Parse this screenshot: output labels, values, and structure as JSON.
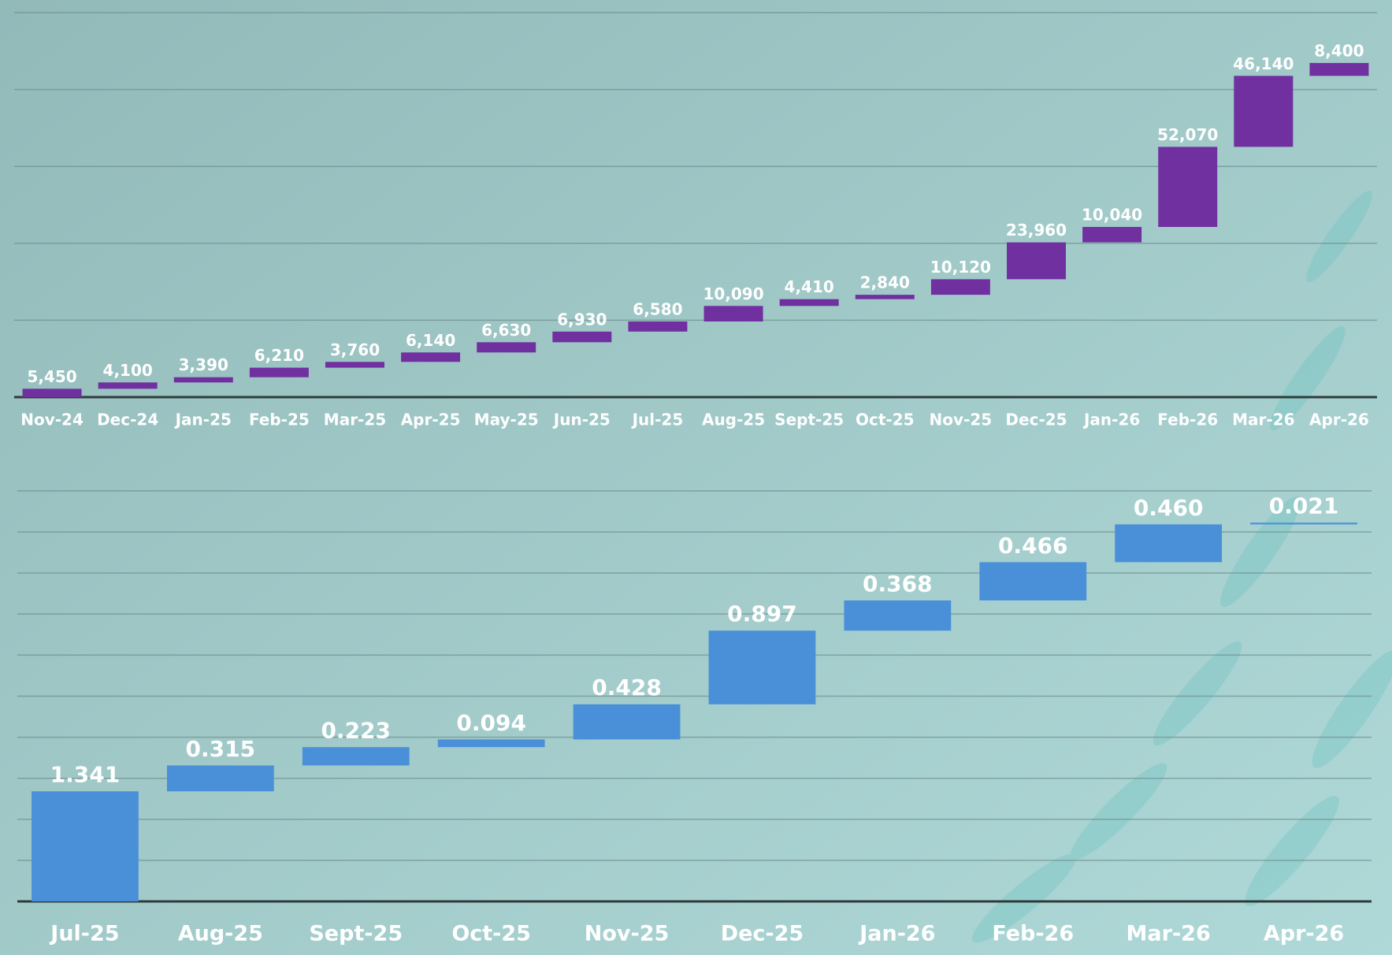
{
  "chart_data": [
    {
      "type": "waterfall",
      "color": "#7030a0",
      "grid": true,
      "categories": [
        "Nov-24",
        "Dec-24",
        "Jan-25",
        "Feb-25",
        "Mar-25",
        "Apr-25",
        "May-25",
        "Jun-25",
        "Jul-25",
        "Aug-25",
        "Sept-25",
        "Oct-25",
        "Nov-25",
        "Dec-25",
        "Jan-26",
        "Feb-26",
        "Mar-26",
        "Apr-26"
      ],
      "values": [
        5450,
        4100,
        3390,
        6210,
        3760,
        6140,
        6630,
        6930,
        6580,
        10090,
        4410,
        2840,
        10120,
        23960,
        10040,
        52070,
        46140,
        8400
      ],
      "value_labels": [
        "5,450",
        "4,100",
        "3,390",
        "6,210",
        "3,760",
        "6,140",
        "6,630",
        "6,930",
        "6,580",
        "10,090",
        "4,410",
        "2,840",
        "10,120",
        "23,960",
        "10,040",
        "52,070",
        "46,140",
        "8,400"
      ],
      "ylim": [
        0,
        250000
      ],
      "yticks": [
        0,
        50000,
        100000,
        150000,
        200000,
        250000
      ]
    },
    {
      "type": "waterfall",
      "color": "#4a90d9",
      "grid": true,
      "categories": [
        "Jul-25",
        "Aug-25",
        "Sept-25",
        "Oct-25",
        "Nov-25",
        "Dec-25",
        "Jan-26",
        "Feb-26",
        "Mar-26",
        "Apr-26"
      ],
      "values": [
        1.341,
        0.315,
        0.223,
        0.094,
        0.428,
        0.897,
        0.368,
        0.466,
        0.46,
        0.021
      ],
      "value_labels": [
        "1.341",
        "0.315",
        "0.223",
        "0.094",
        "0.428",
        "0.897",
        "0.368",
        "0.466",
        "0.460",
        "0.021"
      ],
      "ylim": [
        0,
        5
      ],
      "yticks": [
        0,
        0.5,
        1,
        1.5,
        2,
        2.5,
        3,
        3.5,
        4,
        4.5,
        5
      ]
    }
  ]
}
